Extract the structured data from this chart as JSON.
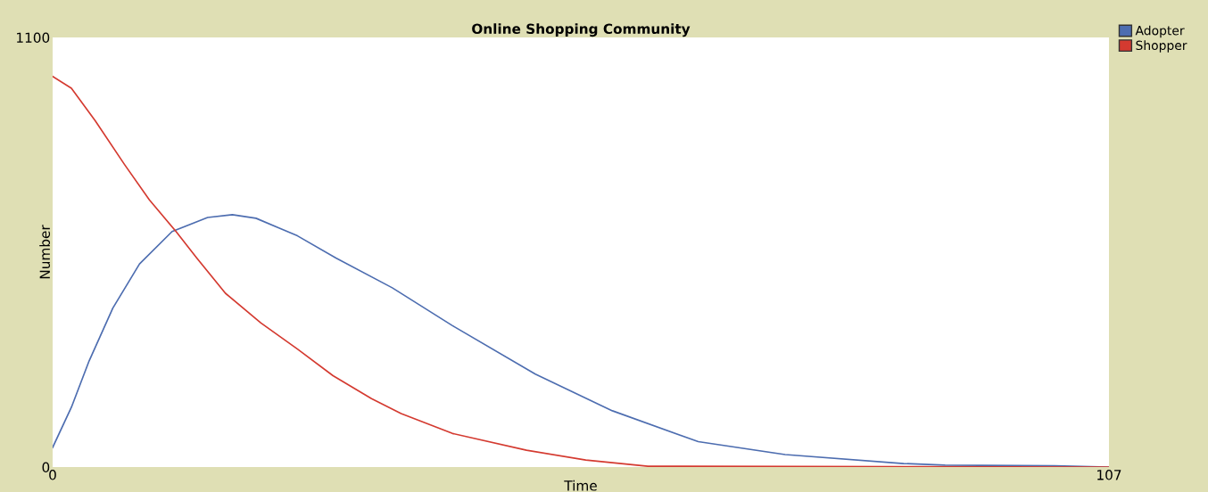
{
  "chart_data": {
    "type": "line",
    "title": "Online Shopping Community",
    "xlabel": "Time",
    "ylabel": "Number",
    "xlim": [
      0,
      107
    ],
    "ylim": [
      0,
      1100
    ],
    "xticks": [
      0,
      107
    ],
    "yticks": [
      0,
      1100
    ],
    "grid": false,
    "legend": "top right",
    "marker": "none",
    "line_style": "solid",
    "series": [
      {
        "name": "Adopter",
        "color": "#4d6db0",
        "x": [
          0,
          1.9,
          3.7,
          6.1,
          8.8,
          12.1,
          15.7,
          18.2,
          20.6,
          24.8,
          28.7,
          34.4,
          40.5,
          48.9,
          56.7,
          65.4,
          74.2,
          86.2,
          90.4,
          101.5,
          107
        ],
        "values": [
          50,
          153,
          272,
          407,
          520,
          603,
          639,
          646,
          637,
          592,
          535,
          459,
          362,
          238,
          144,
          65,
          32,
          9,
          5,
          3,
          0
        ]
      },
      {
        "name": "Shopper",
        "color": "#d43a30",
        "x": [
          0,
          1.9,
          4.3,
          7.3,
          9.8,
          12.5,
          14.6,
          17.5,
          21.1,
          24.8,
          28.4,
          32.3,
          35.3,
          40.5,
          48,
          54,
          60.3,
          107
        ],
        "values": [
          1000,
          970,
          887,
          774,
          684,
          603,
          535,
          445,
          369,
          302,
          234,
          175,
          137,
          86,
          43,
          18,
          2,
          0
        ]
      }
    ]
  }
}
